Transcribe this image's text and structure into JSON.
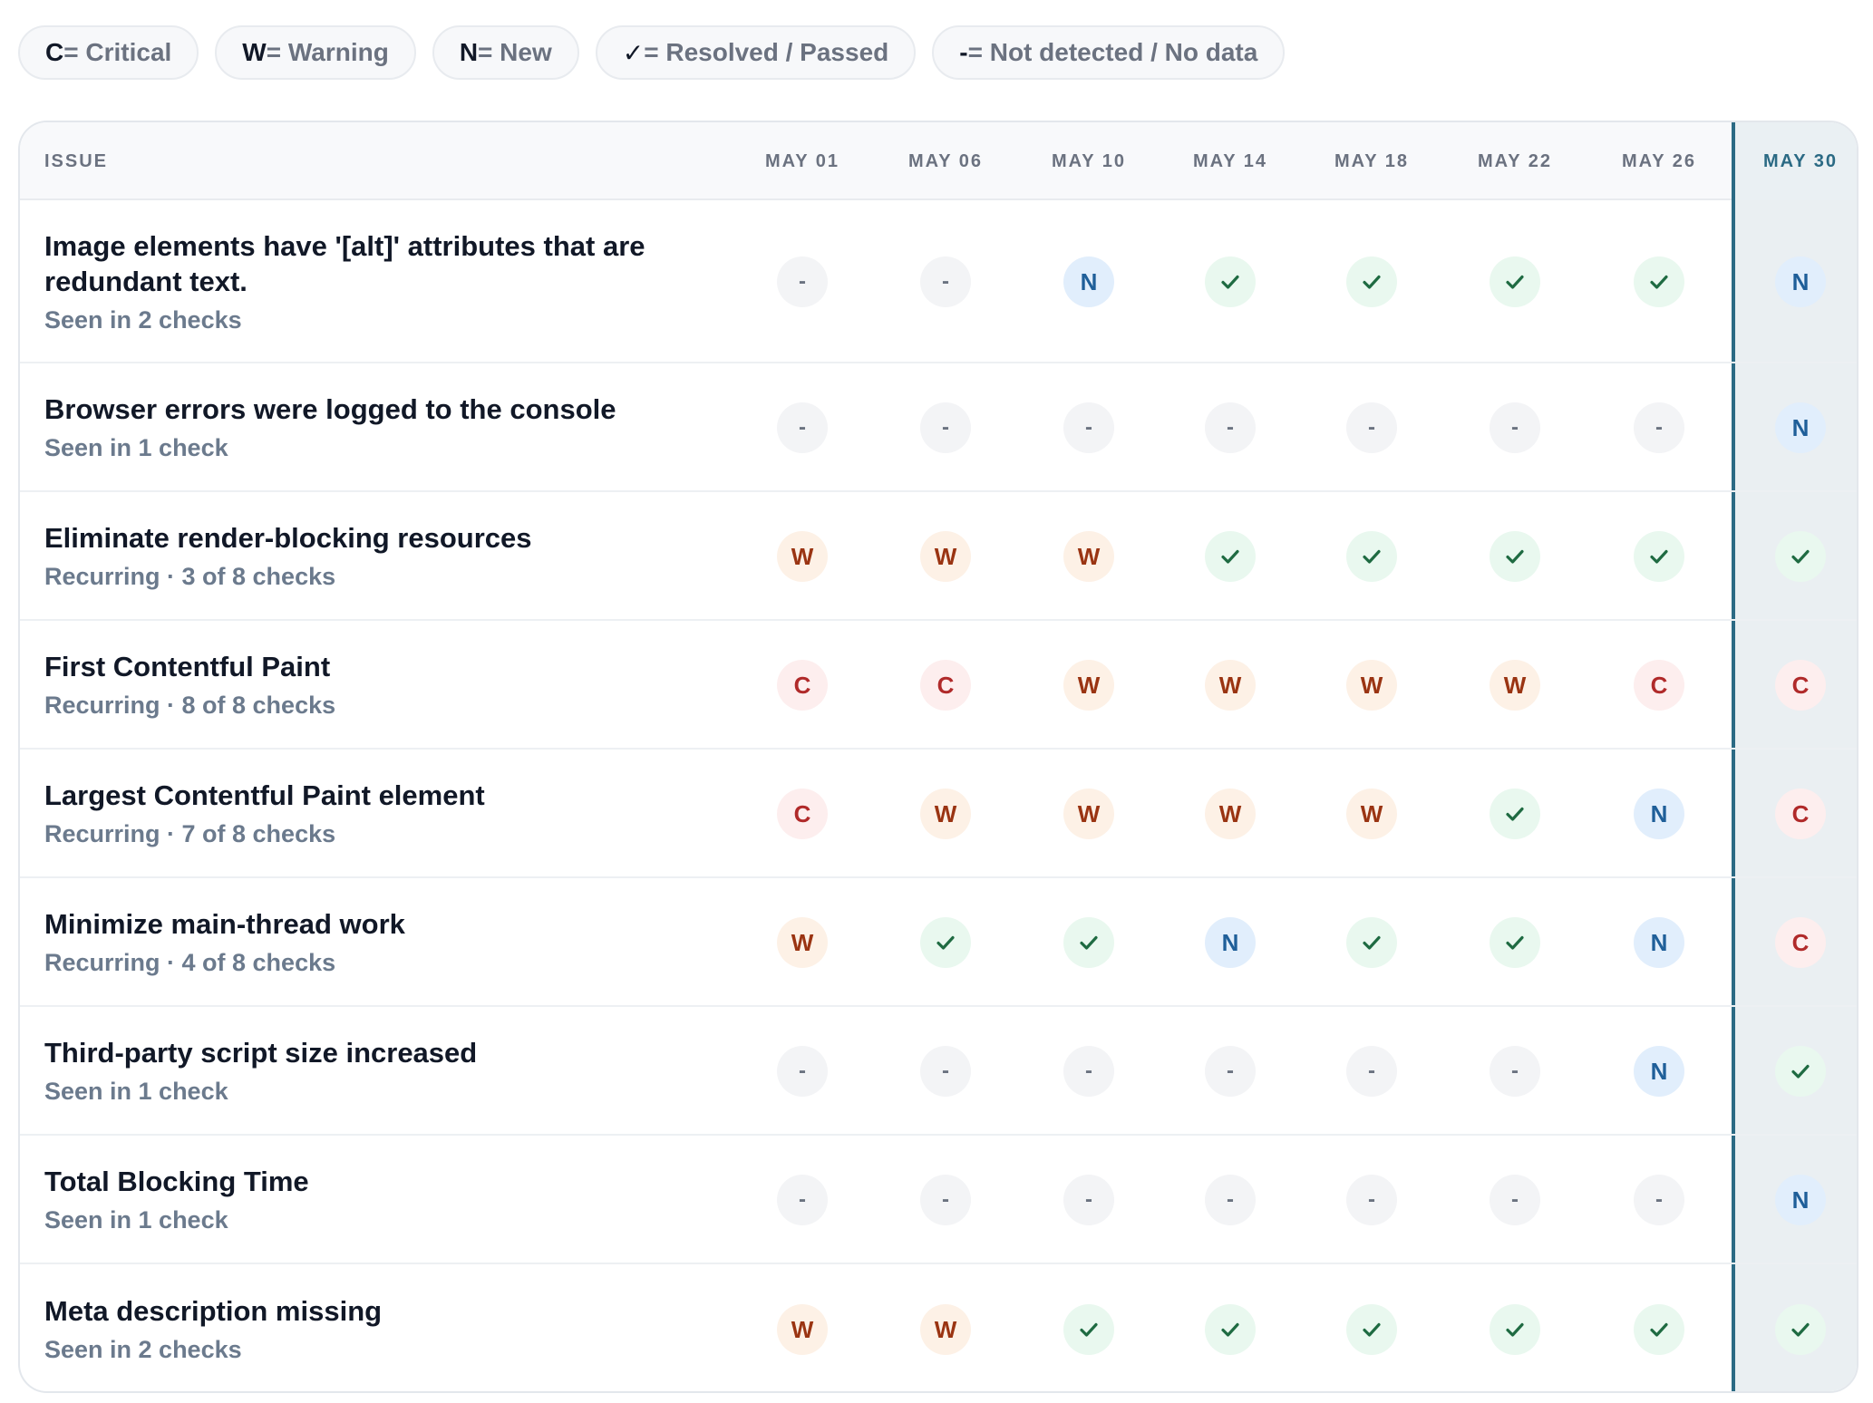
{
  "legend": [
    {
      "key": "C",
      "label": "= Critical",
      "icon": "critical-letter"
    },
    {
      "key": "W",
      "label": "= Warning",
      "icon": "warning-letter"
    },
    {
      "key": "N",
      "label": "= New",
      "icon": "new-letter"
    },
    {
      "key": "✓",
      "label": "= Resolved / Passed",
      "icon": "checkmark-icon"
    },
    {
      "key": "-",
      "label": "= Not detected / No data",
      "icon": "dash-icon"
    }
  ],
  "table": {
    "issue_header": "ISSUE",
    "dates": [
      "MAY 01",
      "MAY 06",
      "MAY 10",
      "MAY 14",
      "MAY 18",
      "MAY 22",
      "MAY 26",
      "MAY 30"
    ],
    "current_date": "MAY 30",
    "rows": [
      {
        "title": "Image elements have '[alt]' attributes that are redundant text.",
        "subtitle": "Seen in 2 checks",
        "statuses": [
          "-",
          "-",
          "N",
          "ok",
          "ok",
          "ok",
          "ok",
          "N"
        ]
      },
      {
        "title": "Browser errors were logged to the console",
        "subtitle": "Seen in 1 check",
        "statuses": [
          "-",
          "-",
          "-",
          "-",
          "-",
          "-",
          "-",
          "N"
        ]
      },
      {
        "title": "Eliminate render-blocking resources",
        "subtitle": "Recurring · 3 of 8 checks",
        "statuses": [
          "W",
          "W",
          "W",
          "ok",
          "ok",
          "ok",
          "ok",
          "ok"
        ]
      },
      {
        "title": "First Contentful Paint",
        "subtitle": "Recurring · 8 of 8 checks",
        "statuses": [
          "C",
          "C",
          "W",
          "W",
          "W",
          "W",
          "C",
          "C"
        ]
      },
      {
        "title": "Largest Contentful Paint element",
        "subtitle": "Recurring · 7 of 8 checks",
        "statuses": [
          "C",
          "W",
          "W",
          "W",
          "W",
          "ok",
          "N",
          "C"
        ]
      },
      {
        "title": "Minimize main-thread work",
        "subtitle": "Recurring · 4 of 8 checks",
        "statuses": [
          "W",
          "ok",
          "ok",
          "N",
          "ok",
          "ok",
          "N",
          "C"
        ]
      },
      {
        "title": "Third-party script size increased",
        "subtitle": "Seen in 1 check",
        "statuses": [
          "-",
          "-",
          "-",
          "-",
          "-",
          "-",
          "N",
          "ok"
        ]
      },
      {
        "title": "Total Blocking Time",
        "subtitle": "Seen in 1 check",
        "statuses": [
          "-",
          "-",
          "-",
          "-",
          "-",
          "-",
          "-",
          "N"
        ]
      },
      {
        "title": "Meta description missing",
        "subtitle": "Seen in 2 checks",
        "statuses": [
          "W",
          "W",
          "ok",
          "ok",
          "ok",
          "ok",
          "ok",
          "ok"
        ]
      }
    ]
  },
  "colors": {
    "critical": "#b02a2a",
    "warning": "#9a3412",
    "new": "#1f5f99",
    "resolved": "#1f6b42",
    "current_column_accent": "#2b6a84"
  }
}
